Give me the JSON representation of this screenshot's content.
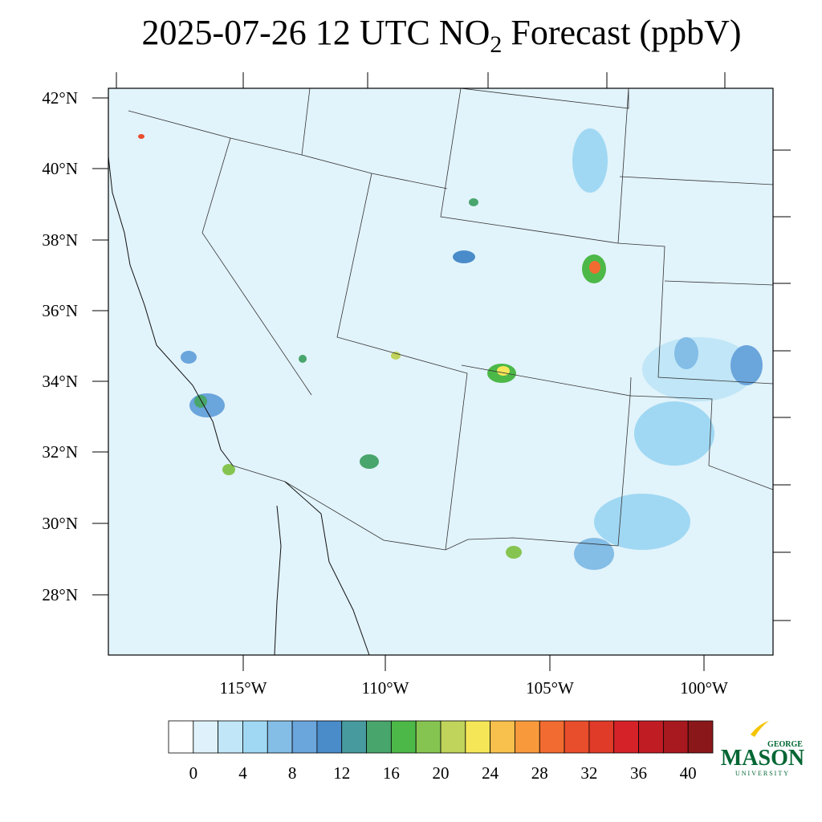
{
  "title": {
    "main": "2025-07-26 12 UTC NO",
    "sub": "2",
    "rest": " Forecast (ppbV)"
  },
  "map": {
    "lat_labels": [
      "42°N",
      "40°N",
      "38°N",
      "36°N",
      "34°N",
      "32°N",
      "30°N",
      "28°N"
    ],
    "lon_labels": [
      "115°W",
      "110°W",
      "105°W",
      "100°W"
    ]
  },
  "colorbar": {
    "colors": [
      "#ffffff",
      "#dff2fb",
      "#c0e6f7",
      "#a0d8f3",
      "#84bde6",
      "#6aa5dc",
      "#4a8cc9",
      "#479b9e",
      "#48a56c",
      "#4cb848",
      "#86c451",
      "#c0d35a",
      "#f5e658",
      "#f8c04c",
      "#f89a3c",
      "#f26b30",
      "#e84d2c",
      "#e03a28",
      "#d42228",
      "#c01c24",
      "#a8181f",
      "#8a1719"
    ],
    "ticks": [
      0,
      4,
      8,
      12,
      16,
      20,
      24,
      28,
      32,
      36,
      40
    ],
    "step": 2
  },
  "logo": {
    "top": "GEORGE",
    "main": "MASON",
    "bottom": "UNIVERSITY"
  }
}
